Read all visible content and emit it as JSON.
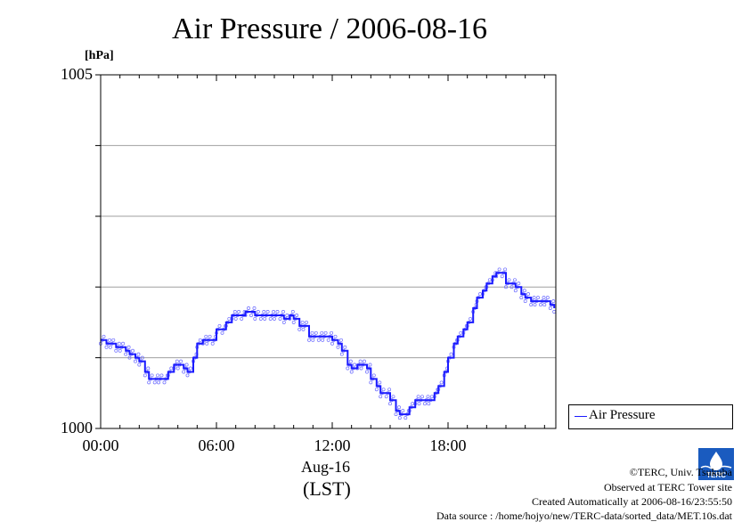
{
  "title": "Air Pressure / 2006-08-16",
  "unit_label": "[hPa]",
  "y_ticks": {
    "top": "1005",
    "bottom": "1000"
  },
  "x_ticks": [
    "00:00",
    "06:00",
    "12:00",
    "18:00"
  ],
  "date_label": "Aug-16",
  "tz_label": "(LST)",
  "legend": {
    "label": "Air Pressure"
  },
  "footer": {
    "copyright": "©TERC, Univ. Tsukuba",
    "observed": "Observed at TERC Tower site",
    "created": "Created Automatically at 2006-08-16/23:55:50",
    "source": "Data source : /home/hojyo/new/TERC-data/sorted_data/MET.10s.dat"
  },
  "logo_text": "TERC",
  "colors": {
    "series": "#1a1aff",
    "grid": "#a0a0a0",
    "axis": "#000000"
  },
  "chart_data": {
    "type": "line",
    "title": "Air Pressure / 2006-08-16",
    "xlabel": "Aug-16 (LST)",
    "ylabel": "[hPa]",
    "xlim": [
      0,
      23.5
    ],
    "ylim": [
      1000,
      1005
    ],
    "x_tick_hours": [
      0,
      6,
      12,
      18
    ],
    "y_gridlines": [
      1001,
      1002,
      1003,
      1004
    ],
    "grid": true,
    "legend_position": "outside-bottom-right",
    "series": [
      {
        "name": "Air Pressure",
        "x": [
          0,
          0.3,
          0.5,
          0.8,
          1.0,
          1.3,
          1.5,
          1.8,
          2.0,
          2.3,
          2.5,
          2.8,
          3.0,
          3.3,
          3.5,
          3.8,
          4.0,
          4.3,
          4.5,
          4.8,
          5.0,
          5.3,
          5.5,
          5.8,
          6.0,
          6.3,
          6.5,
          6.8,
          7.0,
          7.3,
          7.5,
          7.8,
          8.0,
          8.3,
          8.5,
          8.8,
          9.0,
          9.3,
          9.5,
          9.8,
          10.0,
          10.3,
          10.5,
          10.8,
          11.0,
          11.3,
          11.5,
          11.8,
          12.0,
          12.3,
          12.5,
          12.8,
          13.0,
          13.3,
          13.5,
          13.8,
          14.0,
          14.3,
          14.5,
          14.8,
          15.0,
          15.3,
          15.5,
          15.8,
          16.0,
          16.3,
          16.5,
          16.8,
          17.0,
          17.3,
          17.5,
          17.8,
          18.0,
          18.3,
          18.5,
          18.8,
          19.0,
          19.3,
          19.5,
          19.8,
          20.0,
          20.3,
          20.5,
          20.8,
          21.0,
          21.3,
          21.5,
          21.8,
          22.0,
          22.3,
          22.5,
          22.8,
          23.0,
          23.3,
          23.5
        ],
        "values": [
          1001.25,
          1001.2,
          1001.2,
          1001.15,
          1001.15,
          1001.1,
          1001.05,
          1001.0,
          1000.95,
          1000.8,
          1000.7,
          1000.7,
          1000.7,
          1000.7,
          1000.8,
          1000.9,
          1000.9,
          1000.85,
          1000.8,
          1001.0,
          1001.2,
          1001.25,
          1001.25,
          1001.25,
          1001.4,
          1001.4,
          1001.5,
          1001.6,
          1001.6,
          1001.6,
          1001.65,
          1001.65,
          1001.6,
          1001.6,
          1001.6,
          1001.6,
          1001.6,
          1001.6,
          1001.55,
          1001.6,
          1001.55,
          1001.45,
          1001.45,
          1001.3,
          1001.3,
          1001.3,
          1001.3,
          1001.3,
          1001.25,
          1001.2,
          1001.1,
          1000.9,
          1000.85,
          1000.9,
          1000.9,
          1000.85,
          1000.7,
          1000.6,
          1000.5,
          1000.5,
          1000.4,
          1000.25,
          1000.2,
          1000.2,
          1000.3,
          1000.4,
          1000.4,
          1000.4,
          1000.4,
          1000.5,
          1000.6,
          1000.8,
          1001.0,
          1001.2,
          1001.3,
          1001.4,
          1001.5,
          1001.7,
          1001.85,
          1001.95,
          1002.05,
          1002.15,
          1002.2,
          1002.2,
          1002.05,
          1002.05,
          1002.0,
          1001.9,
          1001.85,
          1001.8,
          1001.8,
          1001.8,
          1001.8,
          1001.75,
          1001.7
        ]
      }
    ]
  }
}
